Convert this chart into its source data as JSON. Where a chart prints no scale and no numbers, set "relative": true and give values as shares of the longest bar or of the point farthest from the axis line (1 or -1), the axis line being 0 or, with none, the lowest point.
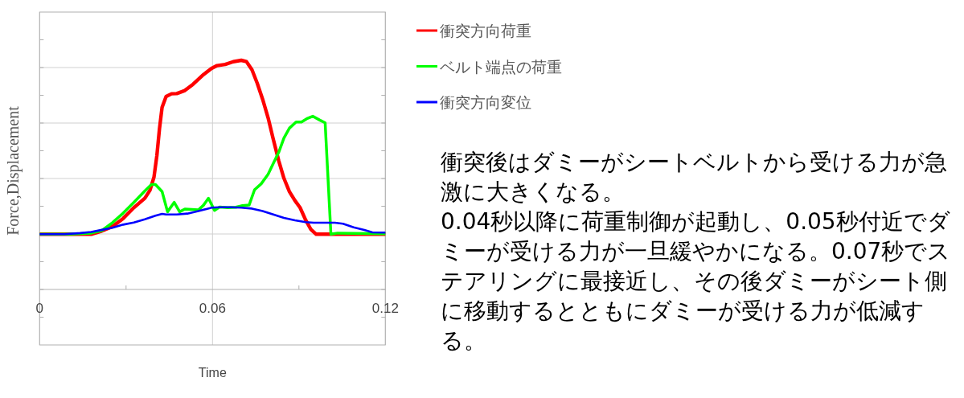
{
  "chart_data": {
    "type": "line",
    "relative": true,
    "xlabel": "Time",
    "ylabel": "Force,Displacement",
    "xlim": [
      0,
      0.12
    ],
    "xticks": [
      0,
      0.06,
      0.12
    ],
    "grid": true,
    "legend": "right",
    "line_style": "solid",
    "marker": "none",
    "series": [
      {
        "name": "衝突方向荷重",
        "color": "#ff0000",
        "x": [
          0,
          0.0179,
          0.0216,
          0.0253,
          0.029,
          0.0327,
          0.0365,
          0.0383,
          0.0397,
          0.0407,
          0.0416,
          0.0425,
          0.0439,
          0.0458,
          0.0476,
          0.0504,
          0.0532,
          0.0569,
          0.0597,
          0.0616,
          0.0644,
          0.0672,
          0.07,
          0.0718,
          0.0737,
          0.0755,
          0.0774,
          0.0793,
          0.0811,
          0.083,
          0.0848,
          0.0867,
          0.0886,
          0.0904,
          0.0923,
          0.0941,
          0.096,
          0.12
        ],
        "values": [
          0.241,
          0.241,
          0.255,
          0.275,
          0.31,
          0.357,
          0.398,
          0.433,
          0.491,
          0.585,
          0.702,
          0.795,
          0.842,
          0.854,
          0.855,
          0.868,
          0.895,
          0.938,
          0.965,
          0.977,
          0.982,
          0.994,
          1,
          0.994,
          0.959,
          0.901,
          0.83,
          0.749,
          0.655,
          0.561,
          0.485,
          0.427,
          0.388,
          0.357,
          0.304,
          0.263,
          0.241,
          0.241
        ]
      },
      {
        "name": "ベルト端点の荷重",
        "color": "#00ff00",
        "x": [
          0,
          0.0104,
          0.0179,
          0.0216,
          0.0253,
          0.029,
          0.0327,
          0.0365,
          0.0388,
          0.0402,
          0.0425,
          0.0444,
          0.0467,
          0.0486,
          0.0504,
          0.0551,
          0.0569,
          0.0586,
          0.0607,
          0.0625,
          0.0653,
          0.0681,
          0.0704,
          0.0727,
          0.0746,
          0.0769,
          0.0793,
          0.0811,
          0.083,
          0.0848,
          0.0867,
          0.089,
          0.0909,
          0.0927,
          0.0948,
          0.0971,
          0.0991,
          0.1011,
          0.1034,
          0.12
        ],
        "values": [
          0.241,
          0.241,
          0.246,
          0.257,
          0.292,
          0.333,
          0.38,
          0.43,
          0.458,
          0.458,
          0.427,
          0.339,
          0.38,
          0.339,
          0.351,
          0.347,
          0.368,
          0.398,
          0.345,
          0.36,
          0.357,
          0.359,
          0.366,
          0.368,
          0.435,
          0.461,
          0.503,
          0.55,
          0.599,
          0.661,
          0.704,
          0.731,
          0.731,
          0.745,
          0.756,
          0.74,
          0.727,
          0.241,
          0.246,
          0.243
        ]
      },
      {
        "name": "衝突方向変位",
        "color": "#0000ff",
        "x": [
          0,
          0.0086,
          0.0141,
          0.0179,
          0.0216,
          0.0253,
          0.029,
          0.0327,
          0.0365,
          0.0402,
          0.0425,
          0.0439,
          0.0476,
          0.0513,
          0.0551,
          0.0579,
          0.0597,
          0.0625,
          0.0662,
          0.07,
          0.0737,
          0.0774,
          0.0811,
          0.0848,
          0.0886,
          0.0923,
          0.0951,
          0.1025,
          0.1053,
          0.109,
          0.1127,
          0.1155,
          0.12
        ],
        "values": [
          0.241,
          0.241,
          0.246,
          0.251,
          0.26,
          0.269,
          0.283,
          0.292,
          0.306,
          0.322,
          0.33,
          0.327,
          0.327,
          0.331,
          0.342,
          0.351,
          0.357,
          0.359,
          0.359,
          0.357,
          0.353,
          0.342,
          0.327,
          0.312,
          0.302,
          0.294,
          0.291,
          0.291,
          0.287,
          0.271,
          0.26,
          0.249,
          0.248
        ]
      }
    ],
    "annotations": [
      "衝突後はダミーがシートベルトから受ける力が急激に大きくなる。",
      "0.04秒以降に荷重制御が起動し、0.05秒付近でダミーが受ける力が一旦緩やかになる。0.07秒でステアリングに最接近し、その後ダミーがシート側に移動するとともにダミーが受ける力が低減する。"
    ]
  }
}
